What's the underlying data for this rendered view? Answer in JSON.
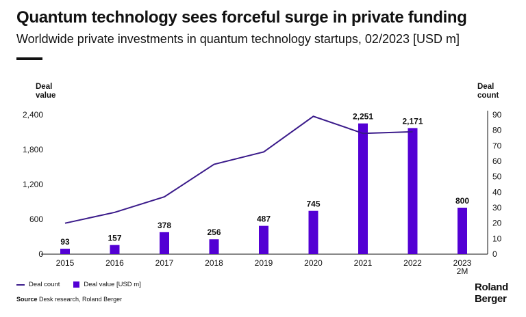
{
  "header": {
    "title": "Quantum technology sees forceful surge in private funding",
    "subtitle": "Worldwide private investments in quantum technology startups, 02/2023 [USD m]"
  },
  "chart_data": {
    "type": "bar",
    "categories": [
      "2015",
      "2016",
      "2017",
      "2018",
      "2019",
      "2020",
      "2021",
      "2022",
      "2023\n2M"
    ],
    "series": [
      {
        "name": "Deal value [USD m]",
        "type": "bar",
        "axis": "left",
        "color": "#5300d4",
        "values": [
          93,
          157,
          378,
          256,
          487,
          745,
          2251,
          2171,
          800
        ],
        "labels": [
          "93",
          "157",
          "378",
          "256",
          "487",
          "745",
          "2,251",
          "2,171",
          "800"
        ]
      },
      {
        "name": "Deal count",
        "type": "line",
        "axis": "right",
        "color": "#3a1a8a",
        "values": [
          20,
          27,
          37,
          58,
          66,
          89,
          78,
          79,
          null
        ]
      }
    ],
    "y_left": {
      "label": "Deal\nvalue",
      "ylim": [
        0,
        2400
      ],
      "ticks": [
        0,
        600,
        1200,
        1800,
        2400
      ],
      "tick_labels": [
        "0",
        "600",
        "1,200",
        "1,800",
        "2,400"
      ]
    },
    "y_right": {
      "label": "Deal\ncount",
      "ylim": [
        0,
        90
      ],
      "ticks": [
        0,
        10,
        20,
        30,
        40,
        50,
        60,
        70,
        80,
        90
      ],
      "tick_labels": [
        "0",
        "10",
        "20",
        "30",
        "40",
        "50",
        "60",
        "70",
        "80",
        "90"
      ]
    },
    "grid": false,
    "legend": "bottom-left"
  },
  "legend": {
    "line_label": "Deal count",
    "bar_label": "Deal value [USD m]"
  },
  "footer": {
    "source_label": "Source",
    "source_text": "Desk research, Roland Berger",
    "brand_line1": "Roland",
    "brand_line2": "Berger"
  }
}
